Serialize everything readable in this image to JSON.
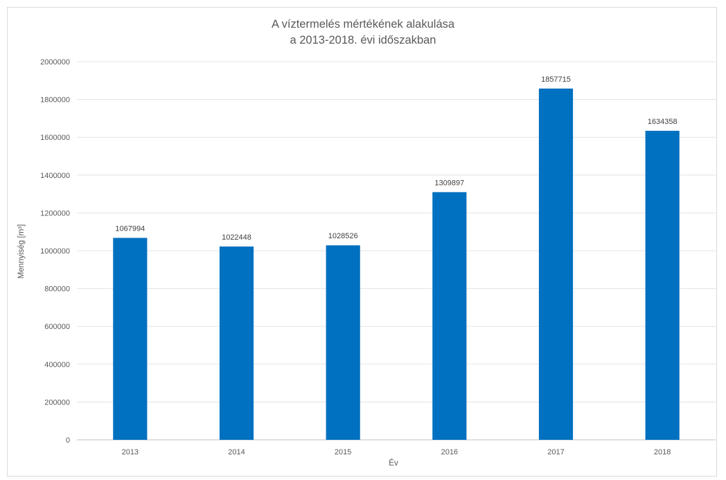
{
  "chart_data": {
    "type": "bar",
    "title": [
      "A víztermelés mértékének alakulása",
      "a 2013-2018. évi időszakban"
    ],
    "xlabel": "Év",
    "ylabel": "Mennyiség [m³]",
    "categories": [
      "2013",
      "2014",
      "2015",
      "2016",
      "2017",
      "2018"
    ],
    "values": [
      1067994,
      1022448,
      1028526,
      1309897,
      1857715,
      1634358
    ],
    "ylim": [
      0,
      2000000
    ],
    "yticks": [
      0,
      200000,
      400000,
      600000,
      800000,
      1000000,
      1200000,
      1400000,
      1600000,
      1800000,
      2000000
    ],
    "grid": true,
    "legend": "none",
    "colors": {
      "bar": "#0070c0",
      "grid": "#e3e3e3",
      "axis": "#bfbfbf",
      "text": "#595959"
    }
  }
}
